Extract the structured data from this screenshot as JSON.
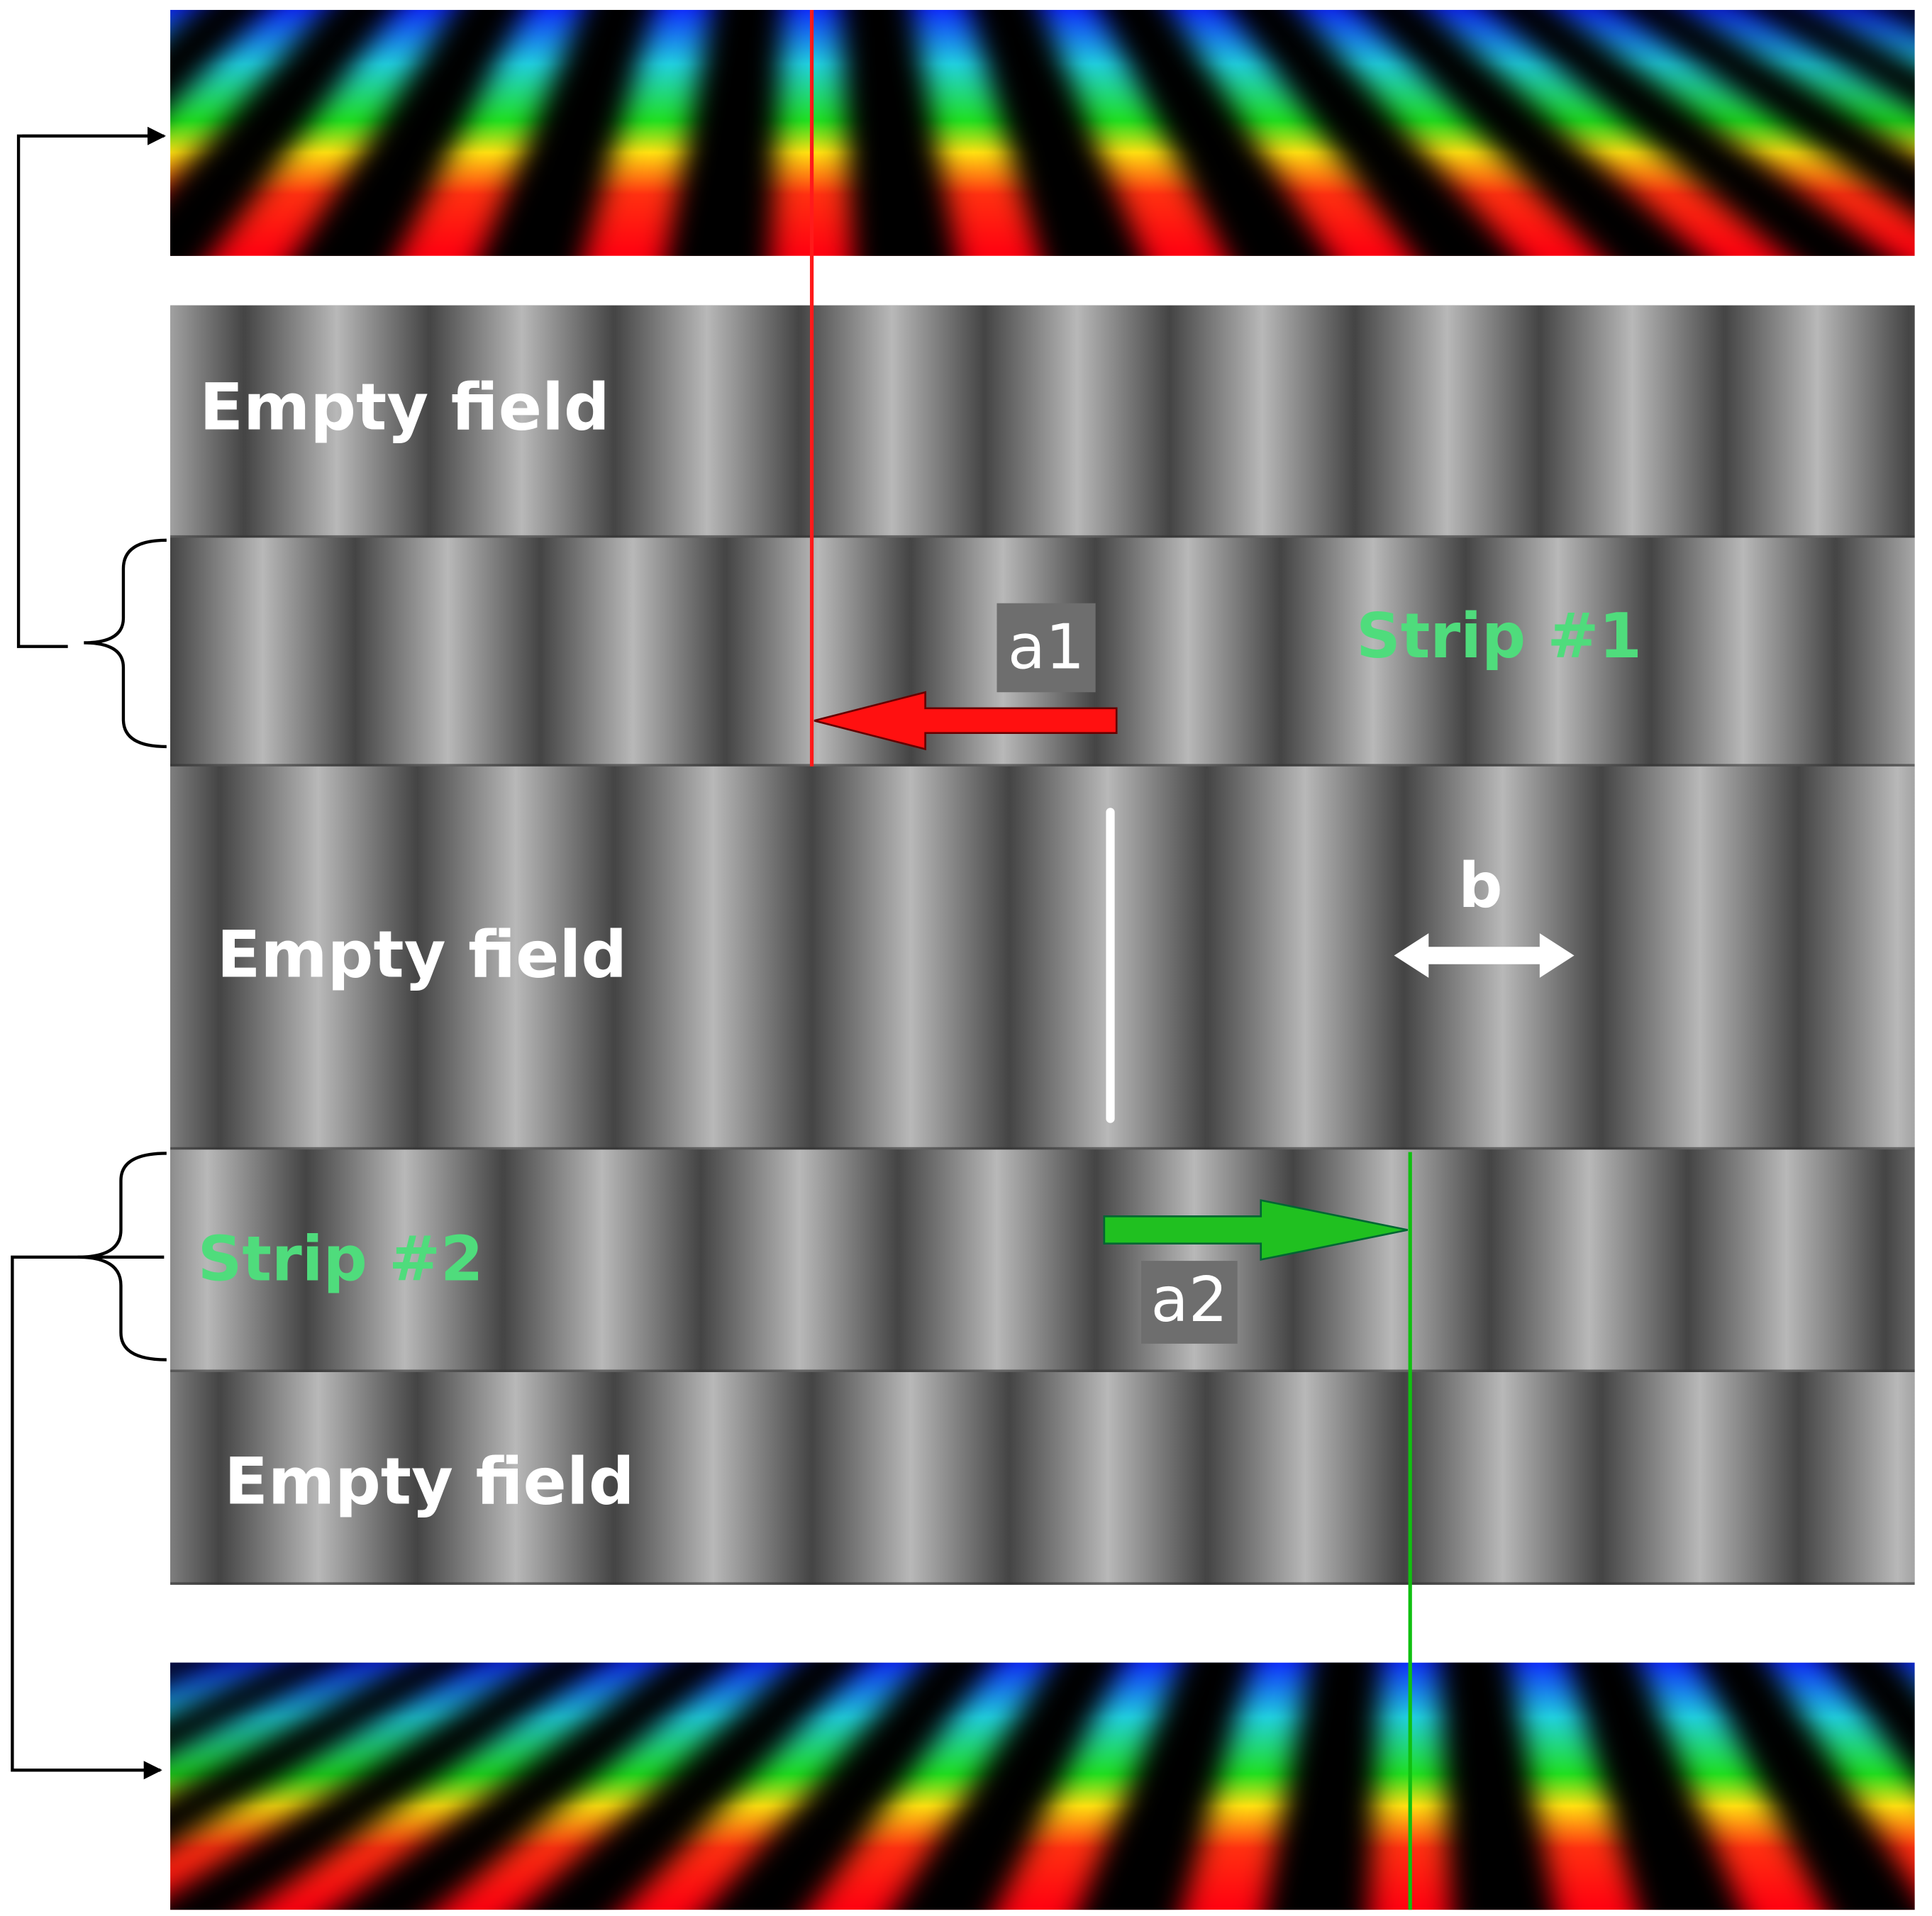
{
  "labels": {
    "empty_field_top": "Empty field",
    "strip_1": "Strip #1",
    "empty_field_middle": "Empty field",
    "strip_2": "Strip #2",
    "empty_field_bottom": "Empty field",
    "a1": "a1",
    "a2": "a2",
    "b": "b"
  }
}
